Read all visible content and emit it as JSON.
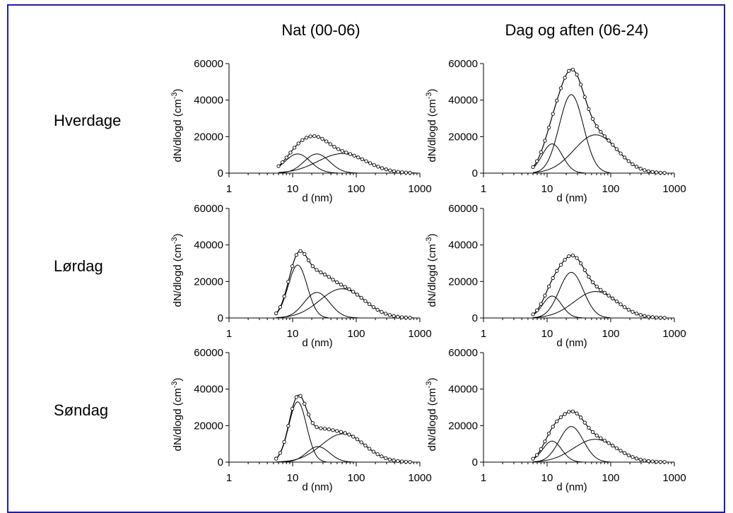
{
  "column_titles": [
    "Nat (00-06)",
    "Dag og aften (06-24)"
  ],
  "row_labels": [
    "Hverdage",
    "Lørdag",
    "Søndag"
  ],
  "chart_data": [
    {
      "type": "line",
      "row": "Hverdage",
      "column": "Nat (00-06)",
      "xlabel": "d (nm)",
      "ylabel": "dN/dlogd (cm-3)",
      "x_scale": "log",
      "xlim": [
        1,
        1000
      ],
      "ylim": [
        0,
        60000
      ],
      "x_ticks": [
        "1",
        "10",
        "100",
        "1000"
      ],
      "y_ticks": [
        "0",
        "20000",
        "40000",
        "60000"
      ],
      "modes": [
        {
          "amplitude": 10500,
          "median_nm": 12,
          "width_log10": 0.2
        },
        {
          "amplitude": 10500,
          "median_nm": 24,
          "width_log10": 0.2
        },
        {
          "amplitude": 10700,
          "median_nm": 60,
          "width_log10": 0.38
        }
      ],
      "points_x_range_nm": [
        6,
        700
      ]
    },
    {
      "type": "line",
      "row": "Hverdage",
      "column": "Dag og aften (06-24)",
      "xlabel": "d (nm)",
      "ylabel": "dN/dlogd (cm-3)",
      "x_scale": "log",
      "xlim": [
        1,
        1000
      ],
      "ylim": [
        0,
        60000
      ],
      "x_ticks": [
        "1",
        "10",
        "100",
        "1000"
      ],
      "y_ticks": [
        "0",
        "20000",
        "40000",
        "60000"
      ],
      "modes": [
        {
          "amplitude": 16000,
          "median_nm": 12,
          "width_log10": 0.16
        },
        {
          "amplitude": 43000,
          "median_nm": 24,
          "width_log10": 0.19
        },
        {
          "amplitude": 21000,
          "median_nm": 58,
          "width_log10": 0.34
        }
      ],
      "points_x_range_nm": [
        6,
        700
      ]
    },
    {
      "type": "line",
      "row": "Lørdag",
      "column": "Nat (00-06)",
      "xlabel": "d (nm)",
      "ylabel": "dN/dlogd (cm-3)",
      "x_scale": "log",
      "xlim": [
        1,
        1000
      ],
      "ylim": [
        0,
        60000
      ],
      "x_ticks": [
        "1",
        "10",
        "100",
        "1000"
      ],
      "y_ticks": [
        "0",
        "20000",
        "40000",
        "60000"
      ],
      "modes": [
        {
          "amplitude": 29000,
          "median_nm": 12,
          "width_log10": 0.15
        },
        {
          "amplitude": 14000,
          "median_nm": 24,
          "width_log10": 0.2
        },
        {
          "amplitude": 16000,
          "median_nm": 60,
          "width_log10": 0.35
        }
      ],
      "points_x_range_nm": [
        5.5,
        700
      ]
    },
    {
      "type": "line",
      "row": "Lørdag",
      "column": "Dag og aften (06-24)",
      "xlabel": "d (nm)",
      "ylabel": "dN/dlogd (cm-3)",
      "x_scale": "log",
      "xlim": [
        1,
        1000
      ],
      "ylim": [
        0,
        60000
      ],
      "x_ticks": [
        "1",
        "10",
        "100",
        "1000"
      ],
      "y_ticks": [
        "0",
        "20000",
        "40000",
        "60000"
      ],
      "modes": [
        {
          "amplitude": 12000,
          "median_nm": 12,
          "width_log10": 0.15
        },
        {
          "amplitude": 25000,
          "median_nm": 24,
          "width_log10": 0.19
        },
        {
          "amplitude": 14500,
          "median_nm": 58,
          "width_log10": 0.34
        }
      ],
      "points_x_range_nm": [
        6,
        700
      ]
    },
    {
      "type": "line",
      "row": "Søndag",
      "column": "Nat (00-06)",
      "xlabel": "d (nm)",
      "ylabel": "dN/dlogd (cm-3)",
      "x_scale": "log",
      "xlim": [
        1,
        1000
      ],
      "ylim": [
        0,
        60000
      ],
      "x_ticks": [
        "1",
        "10",
        "100",
        "1000"
      ],
      "y_ticks": [
        "0",
        "20000",
        "40000",
        "60000"
      ],
      "modes": [
        {
          "amplitude": 33000,
          "median_nm": 12,
          "width_log10": 0.14
        },
        {
          "amplitude": 8500,
          "median_nm": 25,
          "width_log10": 0.18
        },
        {
          "amplitude": 15500,
          "median_nm": 62,
          "width_log10": 0.34
        }
      ],
      "points_x_range_nm": [
        5.5,
        700
      ]
    },
    {
      "type": "line",
      "row": "Søndag",
      "column": "Dag og aften (06-24)",
      "xlabel": "d (nm)",
      "ylabel": "dN/dlogd (cm-3)",
      "x_scale": "log",
      "xlim": [
        1,
        1000
      ],
      "ylim": [
        0,
        60000
      ],
      "x_ticks": [
        "1",
        "10",
        "100",
        "1000"
      ],
      "y_ticks": [
        "0",
        "20000",
        "40000",
        "60000"
      ],
      "modes": [
        {
          "amplitude": 11500,
          "median_nm": 12,
          "width_log10": 0.15
        },
        {
          "amplitude": 19500,
          "median_nm": 24,
          "width_log10": 0.19
        },
        {
          "amplitude": 12500,
          "median_nm": 57,
          "width_log10": 0.34
        }
      ],
      "points_x_range_nm": [
        6,
        700
      ]
    }
  ]
}
